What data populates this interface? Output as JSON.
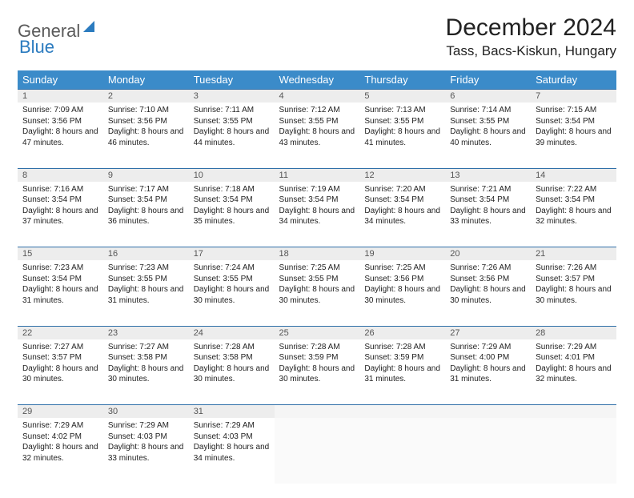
{
  "brand": {
    "part1": "General",
    "part2": "Blue"
  },
  "title": "December 2024",
  "location": "Tass, Bacs-Kiskun, Hungary",
  "colors": {
    "header_bg": "#3b8bc9",
    "header_text": "#ffffff",
    "row_border": "#2f6fa8",
    "daynum_bg": "#ededed",
    "logo_gray": "#5a5a5a",
    "logo_blue": "#2b7bbf"
  },
  "typography": {
    "title_fontsize": 30,
    "location_fontsize": 17,
    "dayheader_fontsize": 13,
    "cell_fontsize": 10
  },
  "day_headers": [
    "Sunday",
    "Monday",
    "Tuesday",
    "Wednesday",
    "Thursday",
    "Friday",
    "Saturday"
  ],
  "weeks": [
    [
      {
        "n": "1",
        "sr": "7:09 AM",
        "ss": "3:56 PM",
        "dl": "8 hours and 47 minutes."
      },
      {
        "n": "2",
        "sr": "7:10 AM",
        "ss": "3:56 PM",
        "dl": "8 hours and 46 minutes."
      },
      {
        "n": "3",
        "sr": "7:11 AM",
        "ss": "3:55 PM",
        "dl": "8 hours and 44 minutes."
      },
      {
        "n": "4",
        "sr": "7:12 AM",
        "ss": "3:55 PM",
        "dl": "8 hours and 43 minutes."
      },
      {
        "n": "5",
        "sr": "7:13 AM",
        "ss": "3:55 PM",
        "dl": "8 hours and 41 minutes."
      },
      {
        "n": "6",
        "sr": "7:14 AM",
        "ss": "3:55 PM",
        "dl": "8 hours and 40 minutes."
      },
      {
        "n": "7",
        "sr": "7:15 AM",
        "ss": "3:54 PM",
        "dl": "8 hours and 39 minutes."
      }
    ],
    [
      {
        "n": "8",
        "sr": "7:16 AM",
        "ss": "3:54 PM",
        "dl": "8 hours and 37 minutes."
      },
      {
        "n": "9",
        "sr": "7:17 AM",
        "ss": "3:54 PM",
        "dl": "8 hours and 36 minutes."
      },
      {
        "n": "10",
        "sr": "7:18 AM",
        "ss": "3:54 PM",
        "dl": "8 hours and 35 minutes."
      },
      {
        "n": "11",
        "sr": "7:19 AM",
        "ss": "3:54 PM",
        "dl": "8 hours and 34 minutes."
      },
      {
        "n": "12",
        "sr": "7:20 AM",
        "ss": "3:54 PM",
        "dl": "8 hours and 34 minutes."
      },
      {
        "n": "13",
        "sr": "7:21 AM",
        "ss": "3:54 PM",
        "dl": "8 hours and 33 minutes."
      },
      {
        "n": "14",
        "sr": "7:22 AM",
        "ss": "3:54 PM",
        "dl": "8 hours and 32 minutes."
      }
    ],
    [
      {
        "n": "15",
        "sr": "7:23 AM",
        "ss": "3:54 PM",
        "dl": "8 hours and 31 minutes."
      },
      {
        "n": "16",
        "sr": "7:23 AM",
        "ss": "3:55 PM",
        "dl": "8 hours and 31 minutes."
      },
      {
        "n": "17",
        "sr": "7:24 AM",
        "ss": "3:55 PM",
        "dl": "8 hours and 30 minutes."
      },
      {
        "n": "18",
        "sr": "7:25 AM",
        "ss": "3:55 PM",
        "dl": "8 hours and 30 minutes."
      },
      {
        "n": "19",
        "sr": "7:25 AM",
        "ss": "3:56 PM",
        "dl": "8 hours and 30 minutes."
      },
      {
        "n": "20",
        "sr": "7:26 AM",
        "ss": "3:56 PM",
        "dl": "8 hours and 30 minutes."
      },
      {
        "n": "21",
        "sr": "7:26 AM",
        "ss": "3:57 PM",
        "dl": "8 hours and 30 minutes."
      }
    ],
    [
      {
        "n": "22",
        "sr": "7:27 AM",
        "ss": "3:57 PM",
        "dl": "8 hours and 30 minutes."
      },
      {
        "n": "23",
        "sr": "7:27 AM",
        "ss": "3:58 PM",
        "dl": "8 hours and 30 minutes."
      },
      {
        "n": "24",
        "sr": "7:28 AM",
        "ss": "3:58 PM",
        "dl": "8 hours and 30 minutes."
      },
      {
        "n": "25",
        "sr": "7:28 AM",
        "ss": "3:59 PM",
        "dl": "8 hours and 30 minutes."
      },
      {
        "n": "26",
        "sr": "7:28 AM",
        "ss": "3:59 PM",
        "dl": "8 hours and 31 minutes."
      },
      {
        "n": "27",
        "sr": "7:29 AM",
        "ss": "4:00 PM",
        "dl": "8 hours and 31 minutes."
      },
      {
        "n": "28",
        "sr": "7:29 AM",
        "ss": "4:01 PM",
        "dl": "8 hours and 32 minutes."
      }
    ],
    [
      {
        "n": "29",
        "sr": "7:29 AM",
        "ss": "4:02 PM",
        "dl": "8 hours and 32 minutes."
      },
      {
        "n": "30",
        "sr": "7:29 AM",
        "ss": "4:03 PM",
        "dl": "8 hours and 33 minutes."
      },
      {
        "n": "31",
        "sr": "7:29 AM",
        "ss": "4:03 PM",
        "dl": "8 hours and 34 minutes."
      },
      null,
      null,
      null,
      null
    ]
  ],
  "labels": {
    "sunrise": "Sunrise:",
    "sunset": "Sunset:",
    "daylight": "Daylight:"
  }
}
